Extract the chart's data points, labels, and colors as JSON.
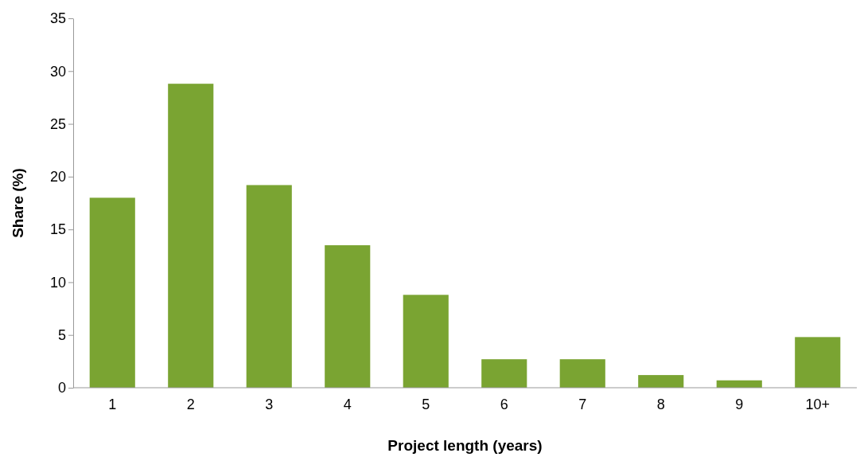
{
  "chart_data": {
    "type": "bar",
    "xlabel": "Project length (years)",
    "ylabel": "Share (%)",
    "categories": [
      "1",
      "2",
      "3",
      "4",
      "5",
      "6",
      "7",
      "8",
      "9",
      "10+"
    ],
    "values": [
      18.0,
      28.8,
      19.2,
      13.5,
      8.8,
      2.7,
      2.7,
      1.2,
      0.7,
      4.8
    ],
    "color": "#7aa432",
    "ylim": [
      0,
      35
    ],
    "yticks": [
      0,
      5,
      10,
      15,
      20,
      25,
      30,
      35
    ],
    "grid": false
  }
}
